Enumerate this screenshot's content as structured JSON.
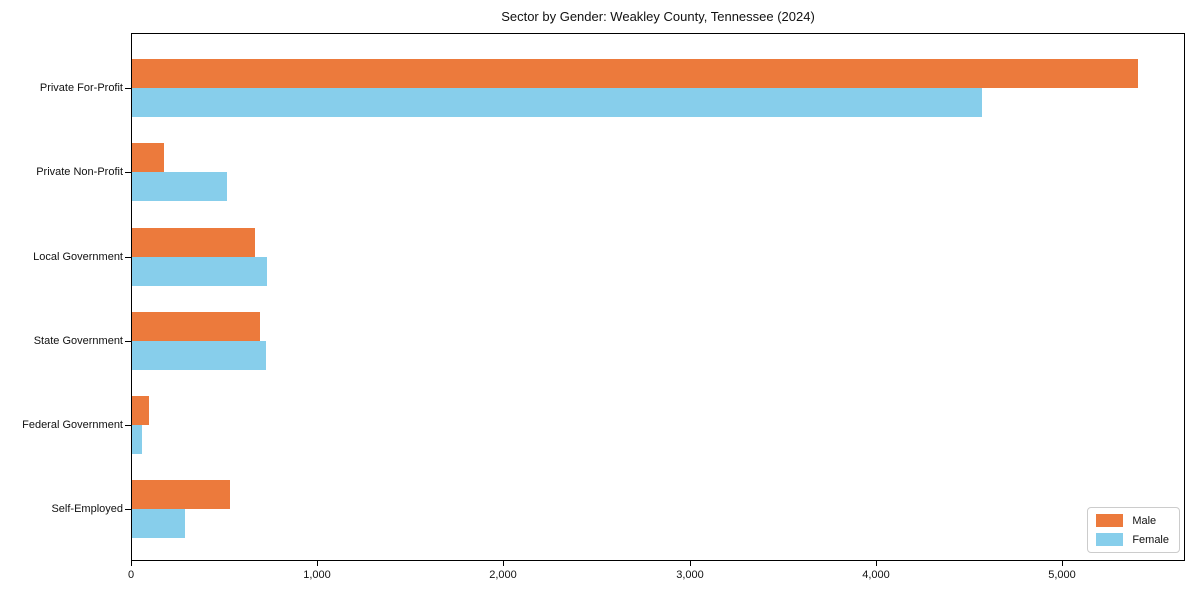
{
  "chart_data": {
    "type": "bar",
    "orientation": "horizontal",
    "title": "Sector by Gender: Weakley County, Tennessee (2024)",
    "categories": [
      "Private For-Profit",
      "Private Non-Profit",
      "Local Government",
      "State Government",
      "Federal Government",
      "Self-Employed"
    ],
    "series": [
      {
        "name": "Male",
        "color": "#EC7A3C",
        "values": [
          5400,
          170,
          660,
          690,
          90,
          525
        ]
      },
      {
        "name": "Female",
        "color": "#87CEEB",
        "values": [
          4565,
          510,
          725,
          720,
          55,
          285
        ]
      }
    ],
    "xlabel": "",
    "ylabel": "",
    "xlim": [
      0,
      5660
    ],
    "x_ticks": [
      0,
      1000,
      2000,
      3000,
      4000,
      5000
    ],
    "x_tick_labels": [
      "0",
      "1,000",
      "2,000",
      "3,000",
      "4,000",
      "5,000"
    ],
    "grid": false,
    "legend": {
      "position": "lower right",
      "entries": [
        {
          "label": "Male",
          "color": "#EC7A3C"
        },
        {
          "label": "Female",
          "color": "#87CEEB"
        }
      ]
    },
    "colors": {
      "axis": "#000000",
      "background": "#ffffff",
      "legend_border": "#cccccc"
    }
  }
}
